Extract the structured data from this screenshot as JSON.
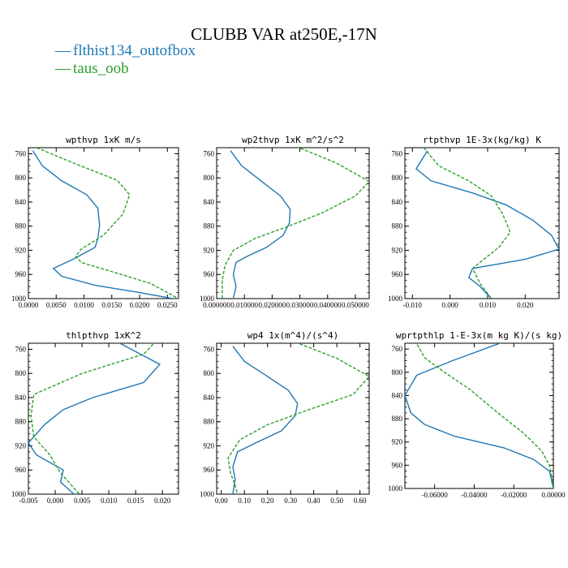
{
  "title": "CLUBB VAR at250E,-17N",
  "colors": {
    "series1": "#1f77b4",
    "series2": "#2ca02c"
  },
  "legend": [
    {
      "label": "flthist134_outofbox",
      "color": "#1f77b4",
      "style": "solid"
    },
    {
      "label": "taus_oob",
      "color": "#2ca02c",
      "style": "dashed"
    }
  ],
  "chart_data": [
    {
      "type": "line",
      "title": "wpthvp  1xK m/s",
      "ylim": [
        1000,
        750
      ],
      "yticks": [
        "760",
        "800",
        "840",
        "880",
        "920",
        "960",
        "1000"
      ],
      "xlim": [
        0,
        0.027
      ],
      "xticks": [
        {
          "v": 0,
          "label": "0.0000"
        },
        {
          "v": 0.005,
          "label": "0.0050"
        },
        {
          "v": 0.01,
          "label": "0.0100"
        },
        {
          "v": 0.015,
          "label": "0.0150"
        },
        {
          "v": 0.02,
          "label": "0.0200"
        },
        {
          "v": 0.025,
          "label": "0.0250"
        }
      ],
      "series": [
        {
          "name": "flthist134_outofbox",
          "style": "solid",
          "color": "#1f77b4",
          "points": [
            [
              0.0008,
              755
            ],
            [
              0.0025,
              780
            ],
            [
              0.006,
              805
            ],
            [
              0.0105,
              828
            ],
            [
              0.0125,
              850
            ],
            [
              0.0128,
              878
            ],
            [
              0.0125,
              900
            ],
            [
              0.012,
              915
            ],
            [
              0.008,
              935
            ],
            [
              0.0045,
              950
            ],
            [
              0.006,
              963
            ],
            [
              0.012,
              978
            ],
            [
              0.02,
              990
            ],
            [
              0.026,
              1000
            ]
          ]
        },
        {
          "name": "taus_oob",
          "style": "dashed",
          "color": "#2ca02c",
          "points": [
            [
              0.0015,
              750
            ],
            [
              0.008,
              775
            ],
            [
              0.016,
              804
            ],
            [
              0.0182,
              828
            ],
            [
              0.017,
              860
            ],
            [
              0.0135,
              895
            ],
            [
              0.0095,
              918
            ],
            [
              0.0085,
              930
            ],
            [
              0.0095,
              940
            ],
            [
              0.016,
              958
            ],
            [
              0.022,
              975
            ],
            [
              0.027,
              1000
            ]
          ]
        }
      ]
    },
    {
      "type": "line",
      "title": "wp2thvp  1xK m^2/s^2",
      "ylim": [
        1000,
        750
      ],
      "yticks": [
        "760",
        "800",
        "840",
        "880",
        "920",
        "960",
        "1000"
      ],
      "xlim": [
        0,
        0.055
      ],
      "xticks": [
        {
          "v": 0,
          "label": "0.000000"
        },
        {
          "v": 0.01,
          "label": "0.010000"
        },
        {
          "v": 0.02,
          "label": "0.020000"
        },
        {
          "v": 0.03,
          "label": "0.030000"
        },
        {
          "v": 0.04,
          "label": "0.040000"
        },
        {
          "v": 0.05,
          "label": "0.050000"
        }
      ],
      "series": [
        {
          "name": "flthist134_outofbox",
          "style": "solid",
          "color": "#1f77b4",
          "points": [
            [
              0.005,
              755
            ],
            [
              0.009,
              780
            ],
            [
              0.016,
              805
            ],
            [
              0.023,
              830
            ],
            [
              0.0265,
              852
            ],
            [
              0.0262,
              875
            ],
            [
              0.024,
              895
            ],
            [
              0.018,
              915
            ],
            [
              0.011,
              930
            ],
            [
              0.007,
              940
            ],
            [
              0.006,
              960
            ],
            [
              0.007,
              980
            ],
            [
              0.006,
              1000
            ]
          ]
        },
        {
          "name": "taus_oob",
          "style": "dashed",
          "color": "#2ca02c",
          "points": [
            [
              0.027,
              745
            ],
            [
              0.043,
              775
            ],
            [
              0.055,
              806
            ],
            [
              0.05,
              830
            ],
            [
              0.038,
              858
            ],
            [
              0.026,
              880
            ],
            [
              0.014,
              900
            ],
            [
              0.006,
              920
            ],
            [
              0.003,
              945
            ],
            [
              0.002,
              970
            ],
            [
              0.002,
              1000
            ]
          ]
        }
      ]
    },
    {
      "type": "line",
      "title": "rtpthvp  1E-3x(kg/kg) K",
      "ylim": [
        1000,
        750
      ],
      "yticks": [
        "760",
        "800",
        "840",
        "880",
        "920",
        "960",
        "1000"
      ],
      "xlim": [
        -0.012,
        0.029
      ],
      "xticks": [
        {
          "v": -0.01,
          "label": "-0.010"
        },
        {
          "v": 0,
          "label": "0.000"
        },
        {
          "v": 0.01,
          "label": "0.010"
        },
        {
          "v": 0.02,
          "label": "0.020"
        }
      ],
      "series": [
        {
          "name": "flthist134_outofbox",
          "style": "solid",
          "color": "#1f77b4",
          "points": [
            [
              -0.006,
              755
            ],
            [
              -0.009,
              785
            ],
            [
              -0.005,
              805
            ],
            [
              0.006,
              825
            ],
            [
              0.015,
              845
            ],
            [
              0.022,
              870
            ],
            [
              0.027,
              895
            ],
            [
              0.029,
              918
            ],
            [
              0.02,
              935
            ],
            [
              0.006,
              950
            ],
            [
              0.005,
              965
            ],
            [
              0.008,
              980
            ],
            [
              0.011,
              1000
            ]
          ]
        },
        {
          "name": "taus_oob",
          "style": "dashed",
          "color": "#2ca02c",
          "points": [
            [
              -0.007,
              750
            ],
            [
              -0.003,
              780
            ],
            [
              0.005,
              805
            ],
            [
              0.011,
              830
            ],
            [
              0.014,
              860
            ],
            [
              0.016,
              890
            ],
            [
              0.013,
              915
            ],
            [
              0.009,
              935
            ],
            [
              0.006,
              950
            ],
            [
              0.008,
              975
            ],
            [
              0.011,
              1000
            ]
          ]
        }
      ]
    },
    {
      "type": "line",
      "title": "thlpthvp  1xK^2",
      "ylim": [
        1000,
        750
      ],
      "yticks": [
        "760",
        "800",
        "840",
        "880",
        "920",
        "960",
        "1000"
      ],
      "xlim": [
        -0.005,
        0.023
      ],
      "xticks": [
        {
          "v": -0.005,
          "label": "-0.005"
        },
        {
          "v": 0,
          "label": "0.000"
        },
        {
          "v": 0.005,
          "label": "0.005"
        },
        {
          "v": 0.01,
          "label": "0.010"
        },
        {
          "v": 0.015,
          "label": "0.015"
        },
        {
          "v": 0.02,
          "label": "0.020"
        }
      ],
      "series": [
        {
          "name": "flthist134_outofbox",
          "style": "solid",
          "color": "#1f77b4",
          "points": [
            [
              0.011,
              745
            ],
            [
              0.0195,
              785
            ],
            [
              0.0165,
              815
            ],
            [
              0.007,
              840
            ],
            [
              0.0015,
              860
            ],
            [
              -0.002,
              885
            ],
            [
              -0.005,
              915
            ],
            [
              -0.0035,
              935
            ],
            [
              0.0015,
              960
            ],
            [
              0.001,
              980
            ],
            [
              0.0035,
              1000
            ]
          ]
        },
        {
          "name": "taus_oob",
          "style": "dashed",
          "color": "#2ca02c",
          "points": [
            [
              0.0195,
              740
            ],
            [
              0.0165,
              768
            ],
            [
              0.005,
              800
            ],
            [
              -0.004,
              835
            ],
            [
              -0.0045,
              870
            ],
            [
              -0.004,
              905
            ],
            [
              -0.001,
              935
            ],
            [
              0.001,
              965
            ],
            [
              0.003,
              985
            ],
            [
              0.0045,
              1000
            ]
          ]
        }
      ]
    },
    {
      "type": "line",
      "title": "wp4  1x(m^4)/(s^4)",
      "ylim": [
        1000,
        750
      ],
      "yticks": [
        "760",
        "800",
        "840",
        "880",
        "920",
        "960",
        "1000"
      ],
      "xlim": [
        -0.02,
        0.64
      ],
      "xticks": [
        {
          "v": 0,
          "label": "0.00"
        },
        {
          "v": 0.1,
          "label": "0.10"
        },
        {
          "v": 0.2,
          "label": "0.20"
        },
        {
          "v": 0.3,
          "label": "0.30"
        },
        {
          "v": 0.4,
          "label": "0.40"
        },
        {
          "v": 0.5,
          "label": "0.50"
        },
        {
          "v": 0.6,
          "label": "0.60"
        }
      ],
      "series": [
        {
          "name": "flthist134_outofbox",
          "style": "solid",
          "color": "#1f77b4",
          "points": [
            [
              0.05,
              755
            ],
            [
              0.1,
              780
            ],
            [
              0.2,
              805
            ],
            [
              0.29,
              828
            ],
            [
              0.33,
              850
            ],
            [
              0.32,
              870
            ],
            [
              0.26,
              895
            ],
            [
              0.15,
              915
            ],
            [
              0.07,
              930
            ],
            [
              0.05,
              955
            ],
            [
              0.06,
              975
            ],
            [
              0.05,
              1000
            ]
          ]
        },
        {
          "name": "taus_oob",
          "style": "dashed",
          "color": "#2ca02c",
          "points": [
            [
              0.3,
              745
            ],
            [
              0.5,
              775
            ],
            [
              0.64,
              805
            ],
            [
              0.57,
              835
            ],
            [
              0.38,
              860
            ],
            [
              0.2,
              885
            ],
            [
              0.08,
              910
            ],
            [
              0.03,
              940
            ],
            [
              0.04,
              965
            ],
            [
              0.06,
              985
            ],
            [
              0.07,
              1000
            ]
          ]
        }
      ]
    },
    {
      "type": "line",
      "title": "wprtpthlp  1-E-3x(m kg K)/(s kg)",
      "ylim": [
        1000,
        750
      ],
      "yticks": [
        "760",
        "800",
        "840",
        "880",
        "920",
        "960",
        "1000"
      ],
      "xlim": [
        -0.075,
        0
      ],
      "xticks": [
        {
          "v": -0.06,
          "label": "-0.06000"
        },
        {
          "v": -0.04,
          "label": "-0.04000"
        },
        {
          "v": -0.02,
          "label": "-0.02000"
        },
        {
          "v": 0,
          "label": "0.00000"
        }
      ],
      "series": [
        {
          "name": "flthist134_outofbox",
          "style": "solid",
          "color": "#1f77b4",
          "points": [
            [
              -0.023,
              745
            ],
            [
              -0.051,
              780
            ],
            [
              -0.069,
              805
            ],
            [
              -0.075,
              840
            ],
            [
              -0.072,
              870
            ],
            [
              -0.065,
              890
            ],
            [
              -0.05,
              910
            ],
            [
              -0.025,
              930
            ],
            [
              -0.01,
              950
            ],
            [
              -0.002,
              970
            ],
            [
              0,
              1000
            ]
          ]
        },
        {
          "name": "taus_oob",
          "style": "dashed",
          "color": "#2ca02c",
          "points": [
            [
              -0.07,
              745
            ],
            [
              -0.065,
              775
            ],
            [
              -0.055,
              800
            ],
            [
              -0.042,
              830
            ],
            [
              -0.028,
              870
            ],
            [
              -0.015,
              905
            ],
            [
              -0.006,
              935
            ],
            [
              -0.002,
              960
            ],
            [
              -0.0005,
              985
            ],
            [
              0,
              1000
            ]
          ]
        }
      ]
    }
  ]
}
